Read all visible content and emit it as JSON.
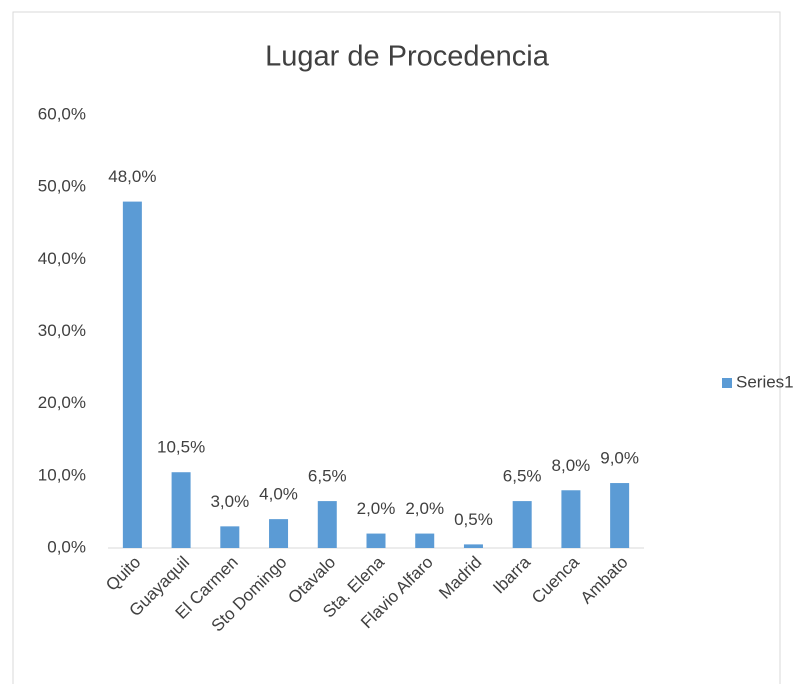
{
  "chart_data": {
    "type": "bar",
    "title": "Lugar de Procedencia",
    "categories": [
      "Quito",
      "Guayaquil",
      "El Carmen",
      "Sto Domingo",
      "Otavalo",
      "Sta. Elena",
      "Flavio Alfaro",
      "Madrid",
      "Ibarra",
      "Cuenca",
      "Ambato"
    ],
    "series": [
      {
        "name": "Series1",
        "color": "#5b9bd5",
        "values": [
          48,
          10.5,
          3,
          4,
          6.5,
          2,
          2,
          0.5,
          6.5,
          8,
          9
        ],
        "value_labels": [
          "48,0%",
          "10,5%",
          "3,0%",
          "4,0%",
          "6,5%",
          "2,0%",
          "2,0%",
          "0,5%",
          "6,5%",
          "8,0%",
          "9,0%"
        ]
      }
    ],
    "ylim": [
      0,
      60
    ],
    "yticks": [
      {
        "value": 0,
        "label": "0,0%"
      },
      {
        "value": 10,
        "label": "10,0%"
      },
      {
        "value": 20,
        "label": "20,0%"
      },
      {
        "value": 30,
        "label": "30,0%"
      },
      {
        "value": 40,
        "label": "40,0%"
      },
      {
        "value": 50,
        "label": "50,0%"
      },
      {
        "value": 60,
        "label": "60,0%"
      }
    ],
    "grid": false,
    "legend": "right"
  }
}
